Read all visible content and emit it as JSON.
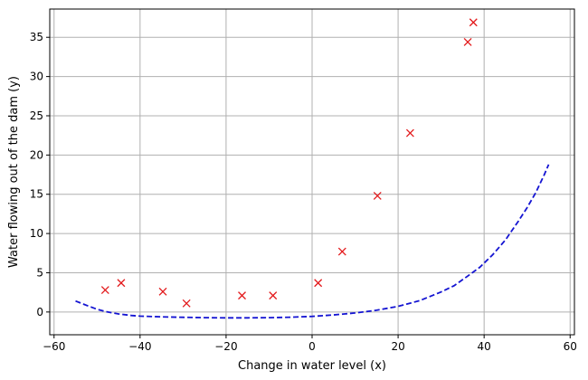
{
  "chart_data": {
    "type": "scatter",
    "xlabel": "Change in water level (x)",
    "ylabel": "Water flowing out of the dam (y)",
    "xlim": [
      -61,
      61
    ],
    "ylim": [
      -2.9,
      38.6
    ],
    "x_ticks": [
      -60,
      -40,
      -20,
      0,
      20,
      40,
      60
    ],
    "y_ticks": [
      0,
      5,
      10,
      15,
      20,
      25,
      30,
      35
    ],
    "x_tick_labels": [
      "−60",
      "−40",
      "−20",
      "0",
      "20",
      "40",
      "60"
    ],
    "y_tick_labels": [
      "0",
      "5",
      "10",
      "15",
      "20",
      "25",
      "30",
      "35"
    ],
    "grid": true,
    "series": [
      {
        "type": "scatter",
        "marker": "x",
        "color": "#e31a1c",
        "points": [
          [
            -48.1,
            2.8
          ],
          [
            -44.4,
            3.7
          ],
          [
            -34.7,
            2.6
          ],
          [
            -29.2,
            1.1
          ],
          [
            -16.3,
            2.1
          ],
          [
            -9.1,
            2.1
          ],
          [
            1.4,
            3.7
          ],
          [
            7.0,
            7.7
          ],
          [
            15.2,
            14.8
          ],
          [
            22.8,
            22.8
          ],
          [
            36.2,
            34.4
          ],
          [
            37.5,
            36.9
          ]
        ]
      },
      {
        "type": "line",
        "style": "dashed",
        "color": "#1414d2",
        "points": [
          [
            -55,
            1.4
          ],
          [
            -52,
            0.75
          ],
          [
            -50,
            0.35
          ],
          [
            -48,
            0.05
          ],
          [
            -45,
            -0.25
          ],
          [
            -42,
            -0.45
          ],
          [
            -40,
            -0.52
          ],
          [
            -35,
            -0.62
          ],
          [
            -30,
            -0.68
          ],
          [
            -25,
            -0.72
          ],
          [
            -20,
            -0.74
          ],
          [
            -15,
            -0.74
          ],
          [
            -10,
            -0.72
          ],
          [
            -5,
            -0.66
          ],
          [
            0,
            -0.56
          ],
          [
            5,
            -0.38
          ],
          [
            10,
            -0.12
          ],
          [
            15,
            0.22
          ],
          [
            20,
            0.72
          ],
          [
            25,
            1.45
          ],
          [
            30,
            2.55
          ],
          [
            33,
            3.35
          ],
          [
            36,
            4.5
          ],
          [
            39,
            5.7
          ],
          [
            42,
            7.3
          ],
          [
            45,
            9.2
          ],
          [
            48,
            11.6
          ],
          [
            50,
            13.3
          ],
          [
            52,
            15.2
          ],
          [
            54,
            17.5
          ],
          [
            55,
            18.8
          ]
        ]
      }
    ]
  }
}
